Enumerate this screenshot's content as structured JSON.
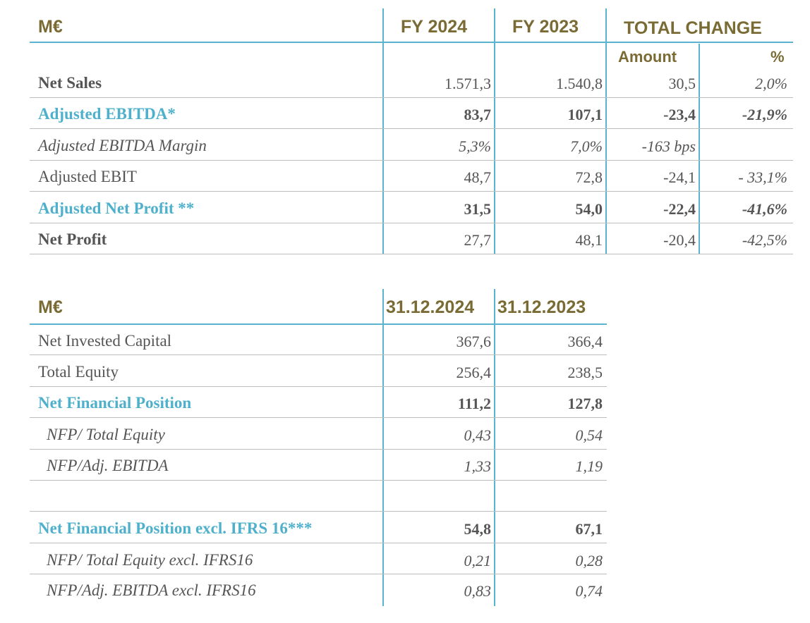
{
  "table1": {
    "header": {
      "unit": "M€",
      "fy2024": "FY 2024",
      "fy2023": "FY 2023",
      "total_change": "TOTAL CHANGE",
      "amount": "Amount",
      "pct": "%"
    },
    "rows": [
      {
        "label": "Net Sales",
        "fy2024": "1.571,3",
        "fy2023": "1.540,8",
        "amount": "30,5",
        "pct": "2,0%"
      },
      {
        "label": "Adjusted EBITDA*",
        "fy2024": "83,7",
        "fy2023": "107,1",
        "amount": "-23,4",
        "pct": "-21,9%"
      },
      {
        "label": "Adjusted EBITDA Margin",
        "fy2024": "5,3%",
        "fy2023": "7,0%",
        "amount": "-163 bps",
        "pct": ""
      },
      {
        "label": "Adjusted EBIT",
        "fy2024": "48,7",
        "fy2023": "72,8",
        "amount": "-24,1",
        "pct": "- 33,1%"
      },
      {
        "label": "Adjusted Net Profit **",
        "fy2024": "31,5",
        "fy2023": "54,0",
        "amount": "-22,4",
        "pct": "-41,6%"
      },
      {
        "label": "Net Profit",
        "fy2024": "27,7",
        "fy2023": "48,1",
        "amount": "-20,4",
        "pct": "-42,5%"
      }
    ]
  },
  "table2": {
    "header": {
      "unit": "M€",
      "d2024": "31.12.2024",
      "d2023": "31.12.2023"
    },
    "rows": [
      {
        "label": "Net Invested Capital",
        "d2024": "367,6",
        "d2023": "366,4"
      },
      {
        "label": "Total Equity",
        "d2024": "256,4",
        "d2023": "238,5"
      },
      {
        "label": "Net Financial Position",
        "d2024": "111,2",
        "d2023": "127,8"
      },
      {
        "label": "NFP/ Total Equity",
        "d2024": "0,43",
        "d2023": "0,54"
      },
      {
        "label": "NFP/Adj. EBITDA",
        "d2024": "1,33",
        "d2023": "1,19"
      },
      {
        "label": "",
        "d2024": "",
        "d2023": ""
      },
      {
        "label": "Net Financial Position excl. IFRS 16***",
        "d2024": "54,8",
        "d2023": "67,1"
      },
      {
        "label": "NFP/ Total Equity excl. IFRS16",
        "d2024": "0,21",
        "d2023": "0,28"
      },
      {
        "label": "NFP/Adj. EBITDA excl. IFRS16",
        "d2024": "0,83",
        "d2023": "0,74"
      }
    ]
  }
}
